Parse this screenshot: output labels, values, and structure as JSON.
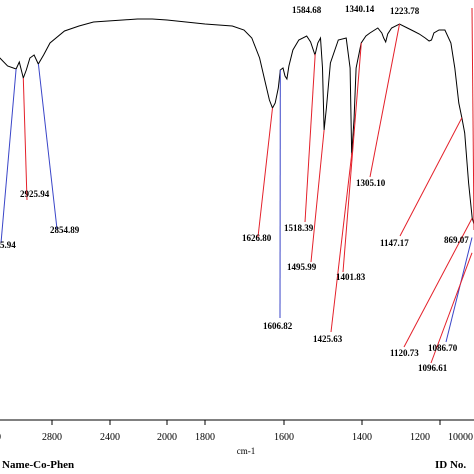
{
  "chart_data": {
    "type": "line",
    "xlabel": "cm-1",
    "x_reversed": true,
    "xlim": [
      3050,
      915
    ],
    "ticks": [
      "2800",
      "2400",
      "2000",
      "1800",
      "1600",
      "1400",
      "1200",
      "1000"
    ],
    "edge_ticks": {
      "left": "0",
      "right": "0"
    },
    "spectrum": [
      [
        3150,
        30
      ],
      [
        3060,
        47
      ],
      [
        3000,
        58
      ],
      [
        2960,
        61
      ],
      [
        2945,
        54
      ],
      [
        2926,
        70
      ],
      [
        2912,
        62
      ],
      [
        2895,
        50
      ],
      [
        2875,
        47
      ],
      [
        2855,
        56
      ],
      [
        2830,
        47
      ],
      [
        2800,
        35
      ],
      [
        2700,
        23
      ],
      [
        2600,
        18
      ],
      [
        2500,
        14
      ],
      [
        2400,
        13
      ],
      [
        2300,
        12
      ],
      [
        2200,
        11
      ],
      [
        2100,
        11
      ],
      [
        2000,
        12
      ],
      [
        1900,
        14
      ],
      [
        1800,
        16
      ],
      [
        1730,
        18
      ],
      [
        1700,
        22
      ],
      [
        1680,
        30
      ],
      [
        1660,
        50
      ],
      [
        1645,
        75
      ],
      [
        1635,
        92
      ],
      [
        1627,
        100
      ],
      [
        1620,
        95
      ],
      [
        1612,
        80
      ],
      [
        1607,
        62
      ],
      [
        1600,
        60
      ],
      [
        1595,
        68
      ],
      [
        1590,
        71
      ],
      [
        1585,
        58
      ],
      [
        1575,
        42
      ],
      [
        1560,
        32
      ],
      [
        1540,
        28
      ],
      [
        1530,
        34
      ],
      [
        1519,
        47
      ],
      [
        1512,
        35
      ],
      [
        1505,
        30
      ],
      [
        1500,
        60
      ],
      [
        1496,
        122
      ],
      [
        1490,
        100
      ],
      [
        1480,
        55
      ],
      [
        1460,
        32
      ],
      [
        1440,
        30
      ],
      [
        1430,
        60
      ],
      [
        1426,
        147
      ],
      [
        1420,
        110
      ],
      [
        1415,
        60
      ],
      [
        1402,
        35
      ],
      [
        1390,
        28
      ],
      [
        1380,
        25
      ],
      [
        1360,
        20
      ],
      [
        1350,
        25
      ],
      [
        1345,
        30
      ],
      [
        1340,
        34
      ],
      [
        1335,
        26
      ],
      [
        1325,
        20
      ],
      [
        1305,
        16
      ],
      [
        1285,
        20
      ],
      [
        1270,
        23
      ],
      [
        1255,
        26
      ],
      [
        1240,
        30
      ],
      [
        1230,
        33
      ],
      [
        1224,
        32
      ],
      [
        1218,
        25
      ],
      [
        1205,
        22
      ],
      [
        1190,
        22
      ],
      [
        1175,
        35
      ],
      [
        1165,
        60
      ],
      [
        1155,
        95
      ],
      [
        1147,
        110
      ],
      [
        1140,
        125
      ],
      [
        1130,
        175
      ],
      [
        1121,
        210
      ],
      [
        1110,
        225
      ],
      [
        1100,
        240
      ],
      [
        1097,
        245
      ],
      [
        1090,
        242
      ],
      [
        1087,
        230
      ],
      [
        1080,
        218
      ],
      [
        1070,
        200
      ],
      [
        1060,
        180
      ],
      [
        1050,
        165
      ],
      [
        1040,
        150
      ],
      [
        1030,
        140
      ]
    ],
    "peaks": [
      {
        "label": "1584.68",
        "wn": 1584.68
      },
      {
        "label": "1340.14",
        "wn": 1340.14
      },
      {
        "label": "1223.78",
        "wn": 1223.78
      },
      {
        "label": "2925.94",
        "wn": 2925.94
      },
      {
        "label": "2854.89",
        "wn": 2854.89
      },
      {
        "label": "5.94",
        "wn": 2960
      },
      {
        "label": "1626.80",
        "wn": 1626.8
      },
      {
        "label": "1518.39",
        "wn": 1518.39
      },
      {
        "label": "1495.99",
        "wn": 1495.99
      },
      {
        "label": "1401.83",
        "wn": 1401.83
      },
      {
        "label": "1305.10",
        "wn": 1305.1
      },
      {
        "label": "1147.17",
        "wn": 1147.17
      },
      {
        "label": "1606.82",
        "wn": 1606.82
      },
      {
        "label": "1425.63",
        "wn": 1425.63
      },
      {
        "label": "1120.73",
        "wn": 1120.73
      },
      {
        "label": "1086.70",
        "wn": 1086.7
      },
      {
        "label": "1096.61",
        "wn": 1096.61
      },
      {
        "label": "869.07",
        "wn": 869.07
      }
    ]
  },
  "footer": {
    "name": "Name-Co-Phen",
    "id": "ID No."
  }
}
